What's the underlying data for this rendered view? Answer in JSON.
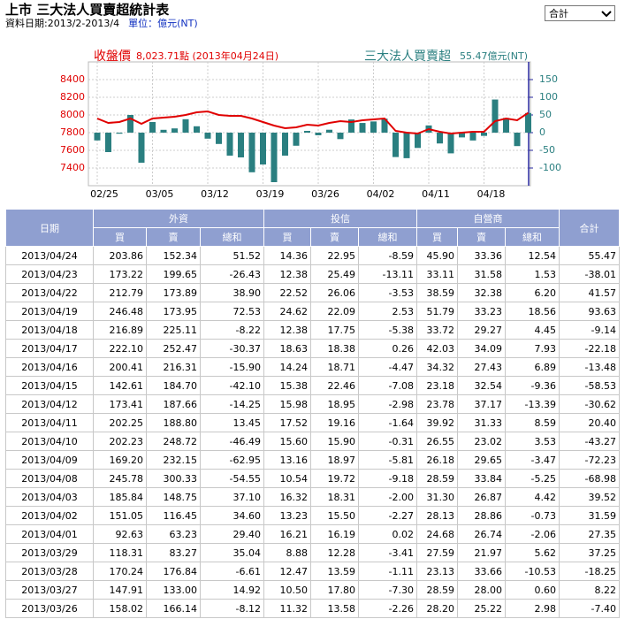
{
  "header": {
    "title": "上市 三大法人買賣超統計表",
    "date_range": "資料日期:2013/2-2013/4",
    "unit": "單位：億元(NT)",
    "select": "合計"
  },
  "chart": {
    "type": "bar_line",
    "price_label": "收盤價",
    "price_text": "8,023.71點 (2013年04月24日)",
    "net_label": "三大法人買賣超",
    "net_text": "55.47億元(NT)",
    "categories": [
      "02/25",
      null,
      null,
      null,
      null,
      "03/05",
      null,
      null,
      null,
      null,
      "03/12",
      null,
      null,
      null,
      null,
      "03/19",
      null,
      null,
      null,
      null,
      "03/26",
      null,
      null,
      null,
      null,
      "04/02",
      null,
      null,
      null,
      null,
      "04/11",
      null,
      null,
      null,
      null,
      "04/18",
      null,
      null,
      null,
      null
    ],
    "ylim": [
      7200,
      8600
    ],
    "yticks": [
      7400,
      7600,
      7800,
      8000,
      8200,
      8400
    ],
    "y2lim": [
      -150,
      200
    ],
    "y2ticks": [
      150,
      100,
      50,
      0,
      -50,
      -100
    ],
    "grid": true,
    "series": [
      {
        "name": "收盤價",
        "color": "#e00000",
        "kind": "line",
        "values": [
          7960,
          7910,
          7920,
          7960,
          7900,
          7960,
          7970,
          7980,
          8000,
          8030,
          8040,
          8000,
          7990,
          7990,
          7960,
          7920,
          7880,
          7850,
          7860,
          7890,
          7880,
          7910,
          7930,
          7920,
          7940,
          7950,
          7960,
          7820,
          7800,
          7790,
          7840,
          7810,
          7790,
          7800,
          7810,
          7810,
          7930,
          7960,
          7940,
          8023.71
        ]
      },
      {
        "name": "三大法人買賣超",
        "color": "#2a7f80",
        "kind": "bar",
        "axis": "y2",
        "values": [
          -22,
          -55,
          -3,
          50,
          -85,
          30,
          8,
          12,
          38,
          18,
          -17,
          -32,
          -65,
          -70,
          -112,
          -90,
          -140,
          -65,
          -37,
          5,
          -7.4,
          8.22,
          -18.25,
          37.25,
          27.35,
          31.59,
          39.52,
          -68.98,
          -72.23,
          -43.27,
          20.4,
          -30.62,
          -58.53,
          -13.48,
          -22.18,
          -9.14,
          93.63,
          41.57,
          -38.01,
          55.47
        ]
      }
    ]
  },
  "table": {
    "groups": [
      "日期",
      "外資",
      "投信",
      "自營商",
      "合計"
    ],
    "subheads": [
      [
        "買",
        "賣",
        "總和"
      ],
      [
        "買",
        "賣",
        "總和"
      ],
      [
        "買",
        "賣",
        "總和"
      ]
    ],
    "rows": [
      [
        "2013/04/24",
        "203.86",
        "152.34",
        "51.52",
        "14.36",
        "22.95",
        "-8.59",
        "45.90",
        "33.36",
        "12.54",
        "55.47"
      ],
      [
        "2013/04/23",
        "173.22",
        "199.65",
        "-26.43",
        "12.38",
        "25.49",
        "-13.11",
        "33.11",
        "31.58",
        "1.53",
        "-38.01"
      ],
      [
        "2013/04/22",
        "212.79",
        "173.89",
        "38.90",
        "22.52",
        "26.06",
        "-3.53",
        "38.59",
        "32.38",
        "6.20",
        "41.57"
      ],
      [
        "2013/04/19",
        "246.48",
        "173.95",
        "72.53",
        "24.62",
        "22.09",
        "2.53",
        "51.79",
        "33.23",
        "18.56",
        "93.63"
      ],
      [
        "2013/04/18",
        "216.89",
        "225.11",
        "-8.22",
        "12.38",
        "17.75",
        "-5.38",
        "33.72",
        "29.27",
        "4.45",
        "-9.14"
      ],
      [
        "2013/04/17",
        "222.10",
        "252.47",
        "-30.37",
        "18.63",
        "18.38",
        "0.26",
        "42.03",
        "34.09",
        "7.93",
        "-22.18"
      ],
      [
        "2013/04/16",
        "200.41",
        "216.31",
        "-15.90",
        "14.24",
        "18.71",
        "-4.47",
        "34.32",
        "27.43",
        "6.89",
        "-13.48"
      ],
      [
        "2013/04/15",
        "142.61",
        "184.70",
        "-42.10",
        "15.38",
        "22.46",
        "-7.08",
        "23.18",
        "32.54",
        "-9.36",
        "-58.53"
      ],
      [
        "2013/04/12",
        "173.41",
        "187.66",
        "-14.25",
        "15.98",
        "18.95",
        "-2.98",
        "23.78",
        "37.17",
        "-13.39",
        "-30.62"
      ],
      [
        "2013/04/11",
        "202.25",
        "188.80",
        "13.45",
        "17.52",
        "19.16",
        "-1.64",
        "39.92",
        "31.33",
        "8.59",
        "20.40"
      ],
      [
        "2013/04/10",
        "202.23",
        "248.72",
        "-46.49",
        "15.60",
        "15.90",
        "-0.31",
        "26.55",
        "23.02",
        "3.53",
        "-43.27"
      ],
      [
        "2013/04/09",
        "169.20",
        "232.15",
        "-62.95",
        "13.16",
        "18.97",
        "-5.81",
        "26.18",
        "29.65",
        "-3.47",
        "-72.23"
      ],
      [
        "2013/04/08",
        "245.78",
        "300.33",
        "-54.55",
        "10.54",
        "19.72",
        "-9.18",
        "28.59",
        "33.84",
        "-5.25",
        "-68.98"
      ],
      [
        "2013/04/03",
        "185.84",
        "148.75",
        "37.10",
        "16.32",
        "18.31",
        "-2.00",
        "31.30",
        "26.87",
        "4.42",
        "39.52"
      ],
      [
        "2013/04/02",
        "151.05",
        "116.45",
        "34.60",
        "13.23",
        "15.50",
        "-2.27",
        "28.13",
        "28.86",
        "-0.73",
        "31.59"
      ],
      [
        "2013/04/01",
        "92.63",
        "63.23",
        "29.40",
        "16.21",
        "16.19",
        "0.02",
        "24.68",
        "26.74",
        "-2.06",
        "27.35"
      ],
      [
        "2013/03/29",
        "118.31",
        "83.27",
        "35.04",
        "8.88",
        "12.28",
        "-3.41",
        "27.59",
        "21.97",
        "5.62",
        "37.25"
      ],
      [
        "2013/03/28",
        "170.24",
        "176.84",
        "-6.61",
        "12.47",
        "13.59",
        "-1.11",
        "23.13",
        "33.66",
        "-10.53",
        "-18.25"
      ],
      [
        "2013/03/27",
        "147.91",
        "133.00",
        "14.92",
        "10.50",
        "17.80",
        "-7.30",
        "28.59",
        "28.00",
        "0.60",
        "8.22"
      ],
      [
        "2013/03/26",
        "158.02",
        "166.14",
        "-8.12",
        "11.32",
        "13.58",
        "-2.26",
        "28.20",
        "25.22",
        "2.98",
        "-7.40"
      ]
    ]
  }
}
